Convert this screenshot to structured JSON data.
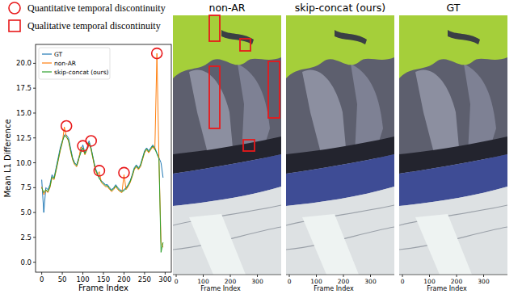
{
  "chart_data": {
    "type": "line",
    "xlabel": "Frame Index",
    "ylabel": "Mean L1 Difference",
    "x": [
      0,
      5,
      10,
      15,
      20,
      25,
      30,
      35,
      40,
      45,
      50,
      55,
      60,
      65,
      70,
      75,
      80,
      85,
      90,
      95,
      100,
      105,
      110,
      115,
      120,
      125,
      130,
      135,
      140,
      145,
      150,
      155,
      160,
      165,
      170,
      175,
      180,
      185,
      190,
      195,
      200,
      205,
      210,
      215,
      220,
      225,
      230,
      235,
      240,
      245,
      250,
      255,
      260,
      265,
      270,
      275,
      280,
      285,
      290,
      295
    ],
    "series": [
      {
        "name": "GT",
        "color": "#1f77b4",
        "values": [
          8.3,
          5.0,
          7.5,
          7.3,
          7.8,
          8.8,
          8.5,
          9.5,
          10.5,
          11.5,
          12.2,
          12.8,
          12.8,
          12.5,
          11.5,
          10.5,
          10.0,
          9.8,
          10.5,
          11.2,
          11.8,
          11.0,
          11.5,
          12.2,
          11.5,
          10.5,
          9.5,
          9.0,
          8.5,
          8.2,
          8.0,
          7.8,
          7.8,
          7.5,
          7.3,
          7.5,
          7.8,
          7.5,
          7.3,
          7.2,
          7.3,
          7.5,
          7.8,
          8.2,
          8.8,
          9.5,
          9.8,
          9.5,
          9.8,
          10.5,
          11.2,
          11.5,
          11.2,
          11.5,
          11.8,
          11.5,
          11.0,
          10.5,
          10.0,
          8.5
        ]
      },
      {
        "name": "non-AR",
        "color": "#ff7f0e",
        "values": [
          7.6,
          6.8,
          7.2,
          7.0,
          7.5,
          8.5,
          8.3,
          9.2,
          10.2,
          11.2,
          12.0,
          13.6,
          12.6,
          12.2,
          11.2,
          10.3,
          9.8,
          9.6,
          10.3,
          11.6,
          11.4,
          10.8,
          11.3,
          12.0,
          11.3,
          10.3,
          9.3,
          8.8,
          9.1,
          8.0,
          7.8,
          7.6,
          7.6,
          7.3,
          7.1,
          7.3,
          7.6,
          7.3,
          7.1,
          7.0,
          8.8,
          7.3,
          7.6,
          8.0,
          8.6,
          9.3,
          9.6,
          9.3,
          9.6,
          10.3,
          11.0,
          11.3,
          11.0,
          11.3,
          11.6,
          11.3,
          21.0,
          10.3,
          2.0,
          1.5
        ]
      },
      {
        "name": "skip-concat (ours)",
        "color": "#2ca02c",
        "values": [
          7.5,
          7.0,
          7.3,
          7.1,
          7.6,
          8.6,
          8.4,
          9.3,
          10.3,
          11.3,
          12.1,
          12.7,
          12.6,
          12.3,
          11.3,
          10.4,
          9.9,
          9.7,
          10.4,
          11.0,
          11.5,
          10.9,
          11.4,
          12.0,
          11.4,
          10.4,
          9.4,
          8.9,
          8.4,
          8.1,
          7.9,
          7.7,
          7.7,
          7.4,
          7.2,
          7.4,
          7.7,
          7.4,
          7.2,
          7.1,
          7.2,
          7.4,
          7.7,
          8.1,
          8.7,
          9.4,
          9.7,
          9.4,
          9.7,
          10.4,
          11.1,
          11.4,
          11.1,
          11.4,
          11.7,
          11.4,
          10.9,
          10.4,
          1.0,
          2.0
        ]
      }
    ],
    "xlim": [
      -15,
      315
    ],
    "ylim": [
      -1,
      21.9
    ],
    "xticks": [
      0,
      50,
      100,
      150,
      200,
      250,
      300
    ],
    "yticks": [
      {
        "value": 0,
        "label": "0.0"
      },
      2.5,
      {
        "value": 5,
        "label": "5.0"
      },
      7.5,
      {
        "value": 10,
        "label": "10.0"
      },
      12.5,
      {
        "value": 15,
        "label": "15.0"
      },
      17.5,
      {
        "value": 20,
        "label": "20.0"
      }
    ],
    "legend": "upper-left",
    "grid": false,
    "highlights": {
      "color": "#e8191b",
      "x": [
        60,
        100,
        120,
        140,
        200,
        280
      ],
      "y": [
        13.7,
        11.7,
        12.2,
        9.2,
        9.0,
        21.0
      ]
    }
  },
  "annotation_legend": [
    {
      "shape": "circle",
      "color": "#e8191b",
      "label": "Quantitative temporal discontinuity"
    },
    {
      "shape": "square",
      "color": "#e8191b",
      "label": "Qualitative temporal discontinuity"
    }
  ],
  "panels": [
    {
      "title": "non-AR",
      "xlabel": "Frame Index",
      "xlim": [
        -12,
        388
      ],
      "xticks": [
        0,
        100,
        200,
        300
      ],
      "marked": true
    },
    {
      "title": "skip-concat (ours)",
      "xlabel": "Frame Index",
      "xlim": [
        -12,
        388
      ],
      "xticks": [
        0,
        100,
        200,
        300
      ],
      "marked": false
    },
    {
      "title": "GT",
      "xlabel": "Frame Index",
      "xlim": [
        -12,
        388
      ],
      "xticks": [
        0,
        100,
        200,
        300
      ],
      "marked": false
    }
  ]
}
